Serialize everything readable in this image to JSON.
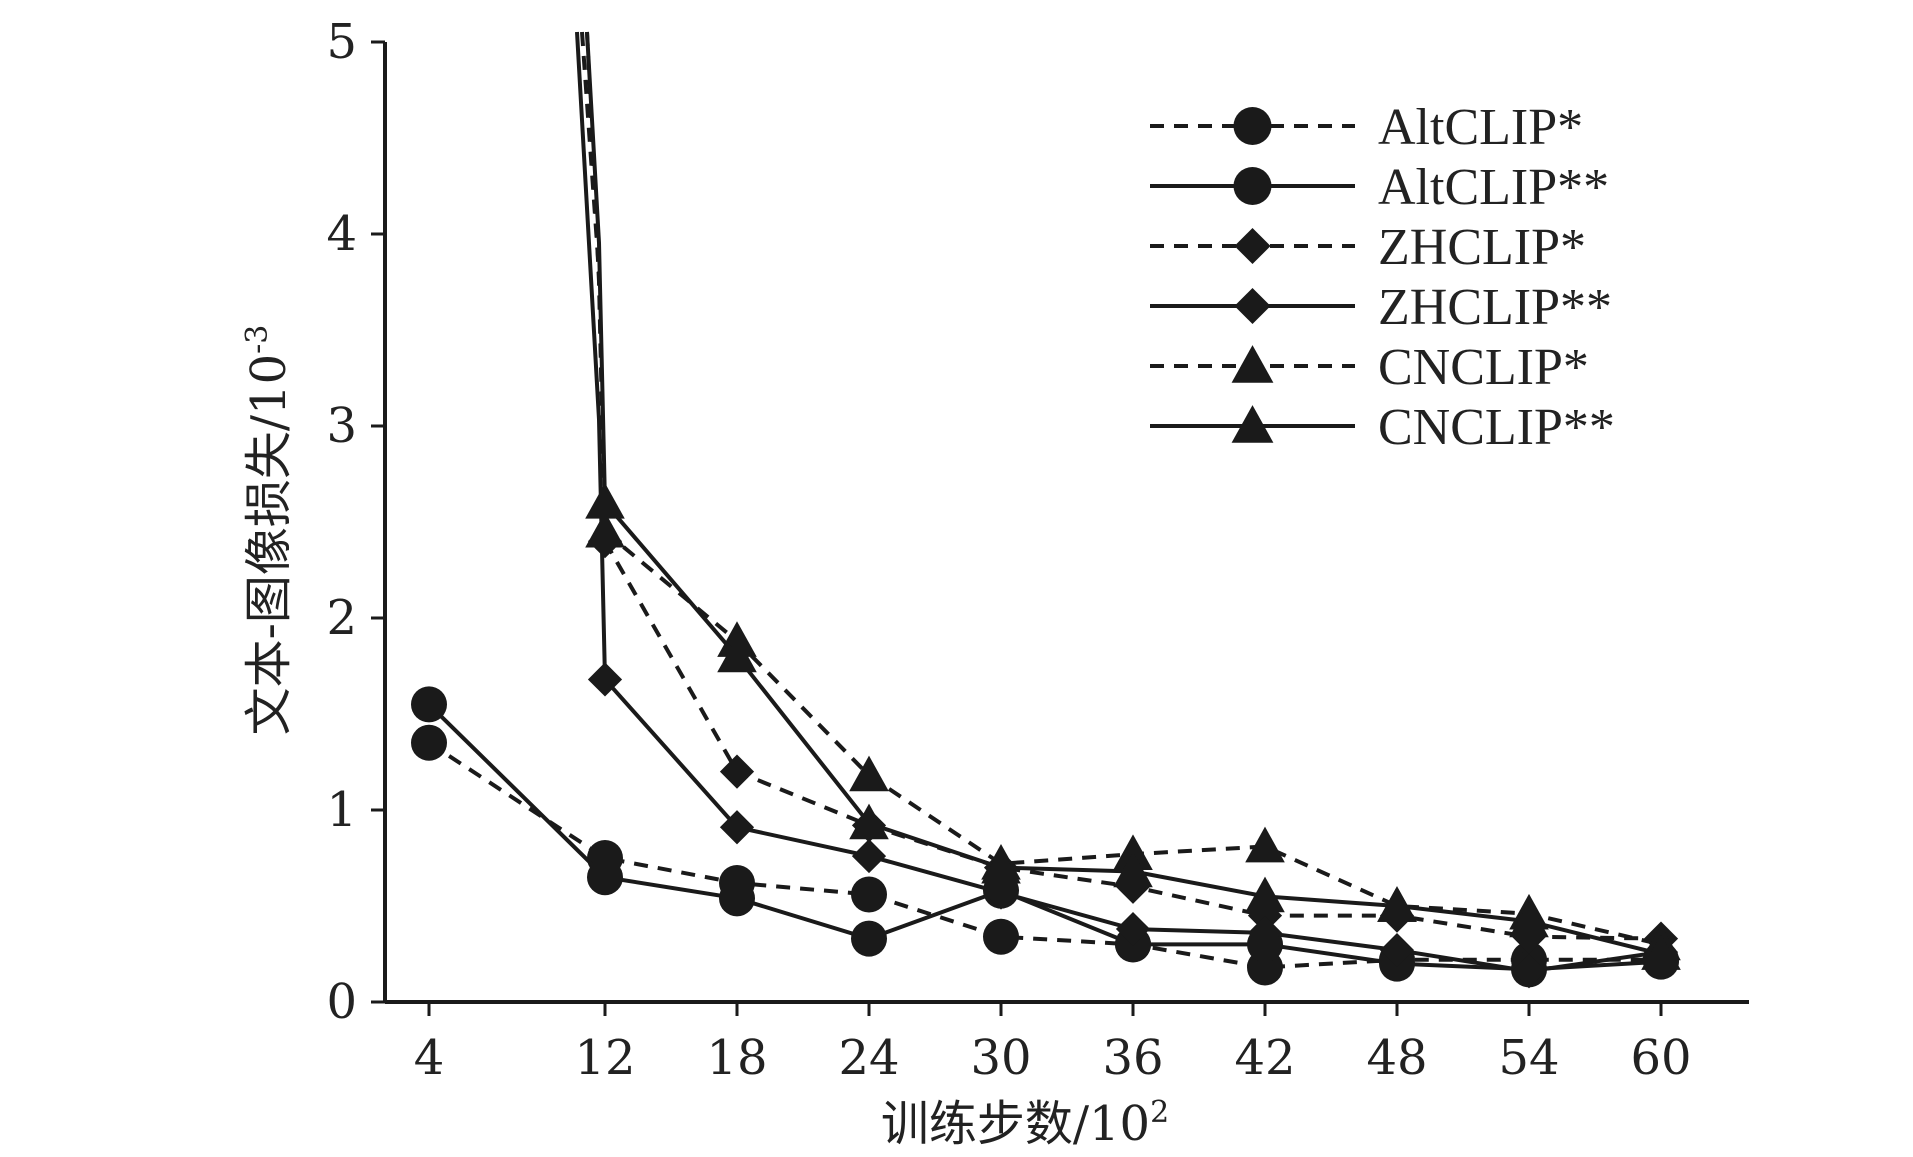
{
  "chart_data": {
    "type": "line",
    "xlabel": "训练步数/10",
    "xlabel_exp": "2",
    "ylabel": "文本-图像损失/10",
    "ylabel_exp": "-3",
    "x": [
      4,
      12,
      18,
      24,
      30,
      36,
      42,
      48,
      54,
      60
    ],
    "x_tick_labels": [
      "4",
      "12",
      "18",
      "24",
      "30",
      "36",
      "42",
      "48",
      "54",
      "60"
    ],
    "y_tick_labels": [
      "0",
      "1",
      "2",
      "3",
      "4",
      "5"
    ],
    "ylim": [
      0,
      5
    ],
    "grid": false,
    "legend_position": "top-right",
    "series": [
      {
        "name": "AltCLIP*",
        "marker": "circle",
        "dashed": true,
        "values": [
          1.35,
          0.75,
          0.62,
          0.56,
          0.34,
          0.3,
          0.18,
          0.22,
          0.22,
          0.22
        ]
      },
      {
        "name": "AltCLIP**",
        "marker": "circle",
        "dashed": false,
        "values": [
          1.55,
          0.65,
          0.54,
          0.33,
          0.58,
          0.3,
          0.3,
          0.2,
          0.17,
          0.21
        ]
      },
      {
        "name": "ZHCLIP*",
        "marker": "diamond",
        "dashed": true,
        "values": [
          null,
          2.4,
          1.2,
          0.92,
          0.7,
          0.6,
          0.45,
          0.45,
          0.34,
          0.33
        ]
      },
      {
        "name": "ZHCLIP**",
        "marker": "diamond",
        "dashed": false,
        "values": [
          null,
          1.68,
          0.91,
          0.76,
          0.57,
          0.38,
          0.36,
          0.27,
          0.16,
          0.26
        ]
      },
      {
        "name": "CNCLIP*",
        "marker": "triangle",
        "dashed": true,
        "values": [
          null,
          2.45,
          1.88,
          1.18,
          0.72,
          0.77,
          0.81,
          0.5,
          0.46,
          0.3
        ]
      },
      {
        "name": "CNCLIP**",
        "marker": "triangle",
        "dashed": false,
        "values": [
          null,
          2.6,
          1.8,
          0.93,
          0.7,
          0.68,
          0.55,
          0.5,
          0.42,
          0.25
        ]
      }
    ]
  }
}
